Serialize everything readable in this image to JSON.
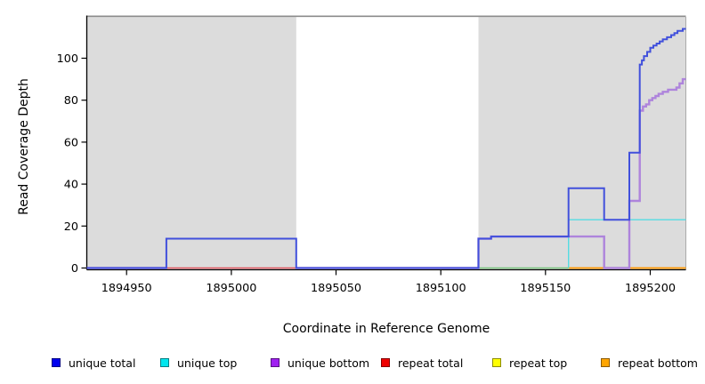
{
  "chart_data": {
    "type": "line",
    "subtype": "step-coverage",
    "title": "",
    "xlabel": "Coordinate in Reference Genome",
    "ylabel": "Read Coverage Depth",
    "axes": {
      "xlim": [
        1894931,
        1895217
      ],
      "ylim": [
        0,
        119
      ],
      "grid": false,
      "x_ticks": [
        {
          "g": 1894950,
          "label": "1894950"
        },
        {
          "g": 1895000,
          "label": "1895000"
        },
        {
          "g": 1895050,
          "label": "1895050"
        },
        {
          "g": 1895100,
          "label": "1895100"
        },
        {
          "g": 1895150,
          "label": "1895150"
        },
        {
          "g": 1895200,
          "label": "1895200"
        }
      ],
      "y_ticks": [
        {
          "v": 0,
          "label": "0"
        },
        {
          "v": 20,
          "label": "20"
        },
        {
          "v": 40,
          "label": "40"
        },
        {
          "v": 60,
          "label": "60"
        },
        {
          "v": 80,
          "label": "80"
        },
        {
          "v": 100,
          "label": "100"
        }
      ]
    },
    "style": {
      "region_fill": "#DCDCDC",
      "top_border": "#8C8C8C",
      "axis_color": "#000000",
      "right_edge": "#AAAAAA"
    },
    "shaded_regions": [
      {
        "from": 1894931,
        "to": 1895031
      },
      {
        "from": 1895118,
        "to": 1895217
      }
    ],
    "gap_region": {
      "from": 1895031,
      "to": 1895118
    },
    "series": [
      {
        "name": "repeat-total-line",
        "legend": "repeat total",
        "color": "#E0555F",
        "width": 1.4,
        "points": [
          [
            1894969,
            0
          ],
          [
            1895031,
            0
          ]
        ]
      },
      {
        "name": "unique-top-baseline-blend-line",
        "legend": "unique top",
        "color": "#78C57E",
        "width": 1.4,
        "points": [
          [
            1895118,
            0
          ],
          [
            1895161,
            0
          ]
        ]
      },
      {
        "name": "repeat-bottom-line",
        "legend": "repeat bottom",
        "color": "#FF9800",
        "width": 1.8,
        "points": [
          [
            1895161,
            0
          ],
          [
            1895217,
            0
          ]
        ]
      },
      {
        "name": "unique-top-line",
        "legend": "unique top",
        "color": "#55DCE2",
        "width": 1.4,
        "points": [
          [
            1895161,
            0
          ],
          [
            1895161,
            23
          ],
          [
            1895217,
            23
          ]
        ]
      },
      {
        "name": "unique-bottom-line-left",
        "legend": "unique bottom",
        "color": "#AE84DC",
        "width": 2.4,
        "points": [
          [
            1894931,
            0
          ],
          [
            1894969,
            0
          ]
        ]
      },
      {
        "name": "unique-bottom-line",
        "legend": "unique bottom",
        "color": "#AE84DC",
        "width": 2.4,
        "points": [
          [
            1895031,
            0
          ],
          [
            1895118,
            0
          ],
          [
            1895118,
            14
          ],
          [
            1895124,
            14
          ],
          [
            1895124,
            15
          ],
          [
            1895178,
            15
          ],
          [
            1895178,
            0
          ],
          [
            1895190,
            0
          ],
          [
            1895190,
            32
          ],
          [
            1895195,
            32
          ],
          [
            1895195,
            75
          ],
          [
            1895196.5,
            75
          ],
          [
            1895196.5,
            77
          ],
          [
            1895198,
            77
          ],
          [
            1895198,
            78
          ],
          [
            1895199.5,
            78
          ],
          [
            1895199.5,
            80
          ],
          [
            1895201,
            80
          ],
          [
            1895201,
            81
          ],
          [
            1895202.5,
            81
          ],
          [
            1895202.5,
            82
          ],
          [
            1895204,
            82
          ],
          [
            1895204,
            83
          ],
          [
            1895206,
            83
          ],
          [
            1895206,
            84
          ],
          [
            1895208.5,
            84
          ],
          [
            1895208.5,
            85
          ],
          [
            1895212.5,
            85
          ],
          [
            1895212.5,
            86
          ],
          [
            1895214,
            86
          ],
          [
            1895214,
            88
          ],
          [
            1895215.5,
            88
          ],
          [
            1895215.5,
            90
          ],
          [
            1895217,
            90
          ]
        ]
      },
      {
        "name": "unique-total-line",
        "legend": "unique total",
        "color": "#4150DC",
        "width": 2,
        "points": [
          [
            1894931,
            0
          ],
          [
            1894969,
            0
          ],
          [
            1894969,
            14
          ],
          [
            1895031,
            14
          ],
          [
            1895031,
            0
          ],
          [
            1895118,
            0
          ],
          [
            1895118,
            14
          ],
          [
            1895124,
            14
          ],
          [
            1895124,
            15
          ],
          [
            1895161,
            15
          ],
          [
            1895161,
            38
          ],
          [
            1895178,
            38
          ],
          [
            1895178,
            23
          ],
          [
            1895190,
            23
          ],
          [
            1895190,
            55
          ],
          [
            1895195,
            55
          ],
          [
            1895195,
            97
          ],
          [
            1895196,
            97
          ],
          [
            1895196,
            99
          ],
          [
            1895197,
            99
          ],
          [
            1895197,
            101
          ],
          [
            1895198.5,
            101
          ],
          [
            1895198.5,
            103
          ],
          [
            1895200,
            103
          ],
          [
            1895200,
            105
          ],
          [
            1895201.5,
            105
          ],
          [
            1895201.5,
            106
          ],
          [
            1895203,
            106
          ],
          [
            1895203,
            107
          ],
          [
            1895204.5,
            107
          ],
          [
            1895204.5,
            108
          ],
          [
            1895206,
            108
          ],
          [
            1895206,
            109
          ],
          [
            1895208,
            109
          ],
          [
            1895208,
            110
          ],
          [
            1895210,
            110
          ],
          [
            1895210,
            111
          ],
          [
            1895211.5,
            111
          ],
          [
            1895211.5,
            112
          ],
          [
            1895213,
            112
          ],
          [
            1895213,
            113
          ],
          [
            1895215.5,
            113
          ],
          [
            1895215.5,
            114
          ],
          [
            1895217,
            114
          ]
        ]
      }
    ],
    "legend": [
      {
        "label": "unique total",
        "color": "#0000EE"
      },
      {
        "label": "unique top",
        "color": "#00E6EE"
      },
      {
        "label": "unique bottom",
        "color": "#A020F0"
      },
      {
        "label": "repeat total",
        "color": "#EE0000"
      },
      {
        "label": "repeat top",
        "color": "#FFFF00"
      },
      {
        "label": "repeat bottom",
        "color": "#FFA500"
      }
    ],
    "legend_position": "bottom"
  }
}
